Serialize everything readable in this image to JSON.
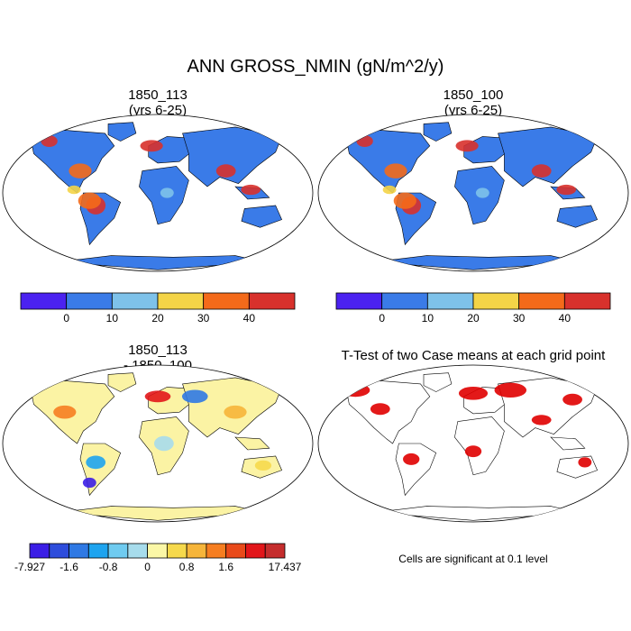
{
  "title": "ANN GROSS_NMIN (gN/m^2/y)",
  "panels": [
    {
      "id": "case1",
      "title_line1": "1850_113",
      "title_line2": "(yrs 6-25)"
    },
    {
      "id": "case2",
      "title_line1": "1850_100",
      "title_line2": "(yrs 6-25)"
    },
    {
      "id": "diff",
      "title_line1": "1850_113",
      "title_line2": "- 1850_100"
    },
    {
      "id": "ttest",
      "title_line1": "T-Test of two Case means at each grid point",
      "title_line2": ""
    }
  ],
  "colorbar_abs": {
    "colors": [
      "#4b22f0",
      "#3a7be8",
      "#7ec2ea",
      "#f4d447",
      "#f46a1a",
      "#d8312c"
    ],
    "labels": [
      "0",
      "10",
      "20",
      "30",
      "40"
    ]
  },
  "colorbar_diff": {
    "colors": [
      "#3b1ee6",
      "#2e4ddc",
      "#2f79e4",
      "#1ea4ef",
      "#6fcbf0",
      "#a7dcec",
      "#fbf7a6",
      "#f6d94c",
      "#f6b53a",
      "#f67e21",
      "#e94a1a",
      "#e2161a",
      "#c52d2d"
    ],
    "labels": [
      "-7.927",
      "-1.6",
      "-0.8",
      "0",
      "0.8",
      "1.6",
      "17.437"
    ]
  },
  "significance_note": "Cells are significant at 0.1 level",
  "map_colors": {
    "ocean": "#ffffff",
    "land_abs": "#3a7be8",
    "land_diff": "#fbf3a4",
    "sig": "#e00000"
  }
}
